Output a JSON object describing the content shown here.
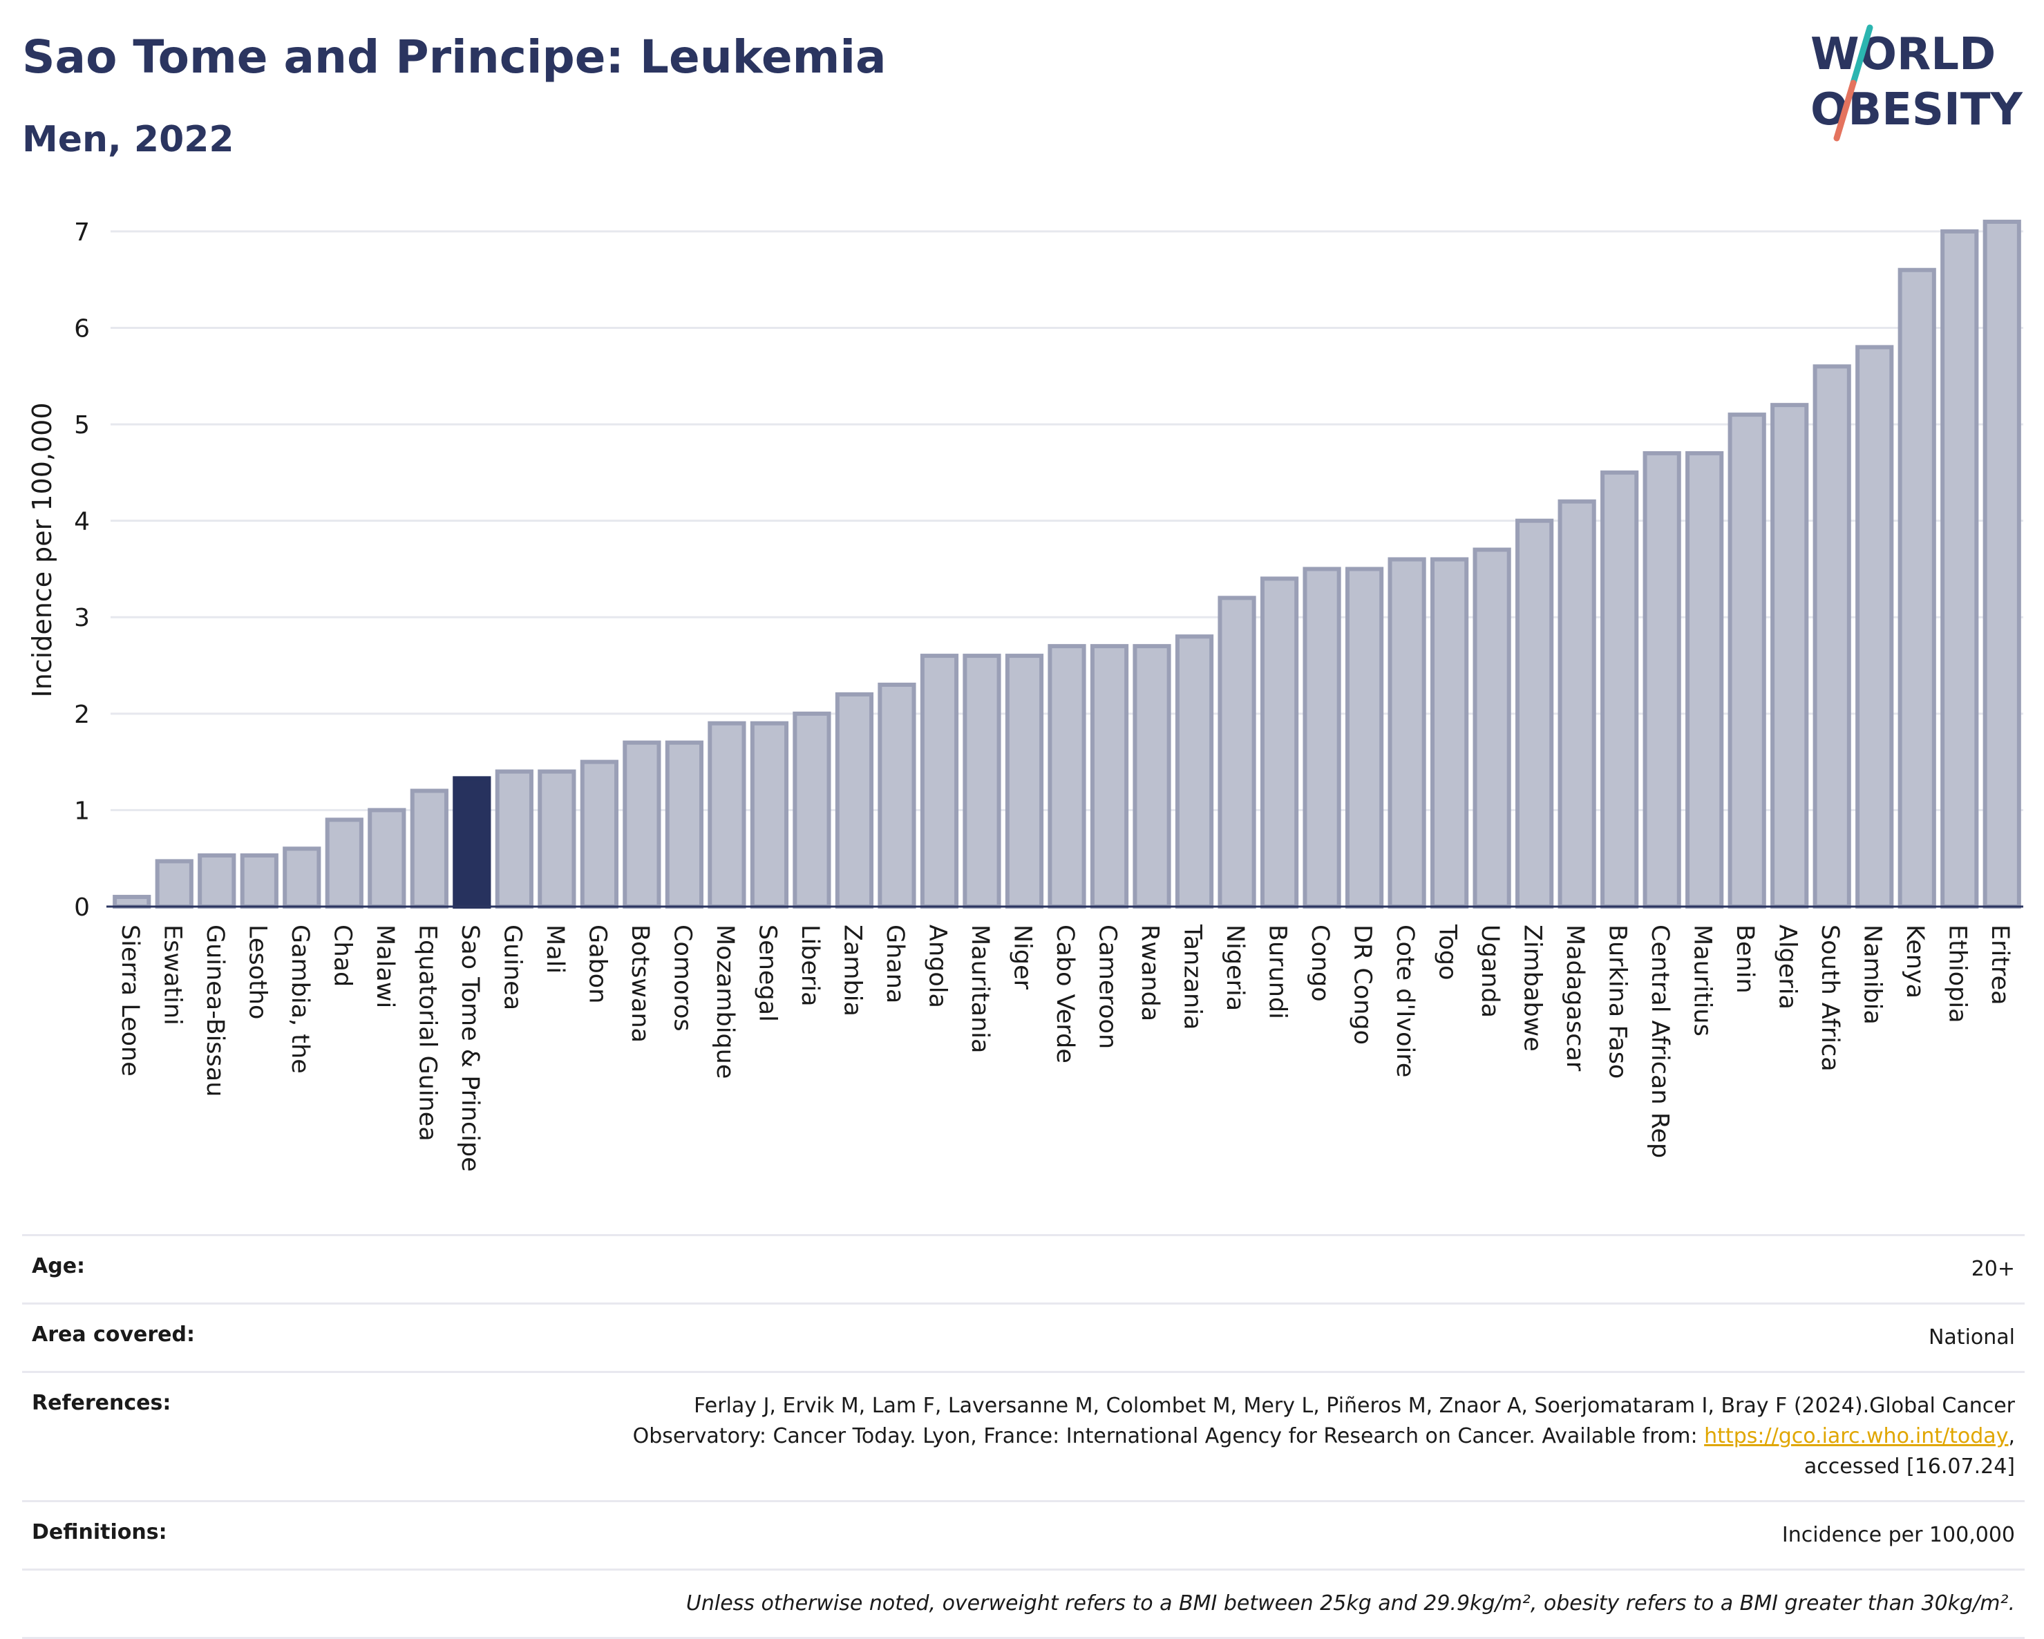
{
  "header": {
    "title": "Sao Tome and Principe: Leukemia",
    "subtitle": "Men, 2022",
    "logo_line1": "WORLD",
    "logo_line2": "OBESITY"
  },
  "colors": {
    "title": "#2b3560",
    "bar": "#bcc0cf",
    "bar_stroke": "#9a9fb6",
    "highlight": "#27325e",
    "logo_teal": "#2bb5b0",
    "logo_coral": "#e4735e"
  },
  "chart_data": {
    "type": "bar",
    "ylabel": "Incidence per 100,000",
    "ylim": [
      0,
      7.25
    ],
    "yticks": [
      0,
      1,
      2,
      3,
      4,
      5,
      6,
      7
    ],
    "grid": true,
    "highlight": "Sao Tome & Principe",
    "categories": [
      "Sierra Leone",
      "Eswatini",
      "Guinea-Bissau",
      "Lesotho",
      "Gambia, the",
      "Chad",
      "Malawi",
      "Equatorial Guinea",
      "Sao Tome & Principe",
      "Guinea",
      "Mali",
      "Gabon",
      "Botswana",
      "Comoros",
      "Mozambique",
      "Senegal",
      "Liberia",
      "Zambia",
      "Ghana",
      "Angola",
      "Mauritania",
      "Niger",
      "Cabo Verde",
      "Cameroon",
      "Rwanda",
      "Tanzania",
      "Nigeria",
      "Burundi",
      "Congo",
      "DR Congo",
      "Cote d'Ivoire",
      "Togo",
      "Uganda",
      "Zimbabwe",
      "Madagascar",
      "Burkina Faso",
      "Central African Rep",
      "Mauritius",
      "Benin",
      "Algeria",
      "South Africa",
      "Namibia",
      "Kenya",
      "Ethiopia",
      "Eritrea"
    ],
    "values": [
      0.1,
      0.47,
      0.53,
      0.53,
      0.6,
      0.9,
      1.0,
      1.2,
      1.33,
      1.4,
      1.4,
      1.5,
      1.7,
      1.7,
      1.9,
      1.9,
      2.0,
      2.2,
      2.3,
      2.6,
      2.6,
      2.6,
      2.7,
      2.7,
      2.7,
      2.8,
      3.2,
      3.4,
      3.5,
      3.5,
      3.6,
      3.6,
      3.7,
      4.0,
      4.2,
      4.5,
      4.7,
      4.7,
      5.1,
      5.2,
      5.6,
      5.8,
      6.6,
      7.0,
      7.1
    ]
  },
  "meta": {
    "age_label": "Age:",
    "age_value": "20+",
    "area_label": "Area covered:",
    "area_value": "National",
    "references_label": "References:",
    "references_line1": "Ferlay J, Ervik M, Lam F, Laversanne M, Colombet M, Mery L, Piñeros M, Znaor A, Soerjomataram I, Bray F (2024).Global Cancer",
    "references_line2": "Observatory: Cancer Today. Lyon, France: International Agency for Research on Cancer. Available from:",
    "references_link": "https://gco.iarc.who.int/today",
    "references_line3": "accessed [16.07.24]",
    "definitions_label": "Definitions:",
    "definitions_value": "Incidence per 100,000",
    "note": "Unless otherwise noted, overweight refers to a BMI between 25kg and 29.9kg/m², obesity refers to a BMI greater than 30kg/m²."
  }
}
